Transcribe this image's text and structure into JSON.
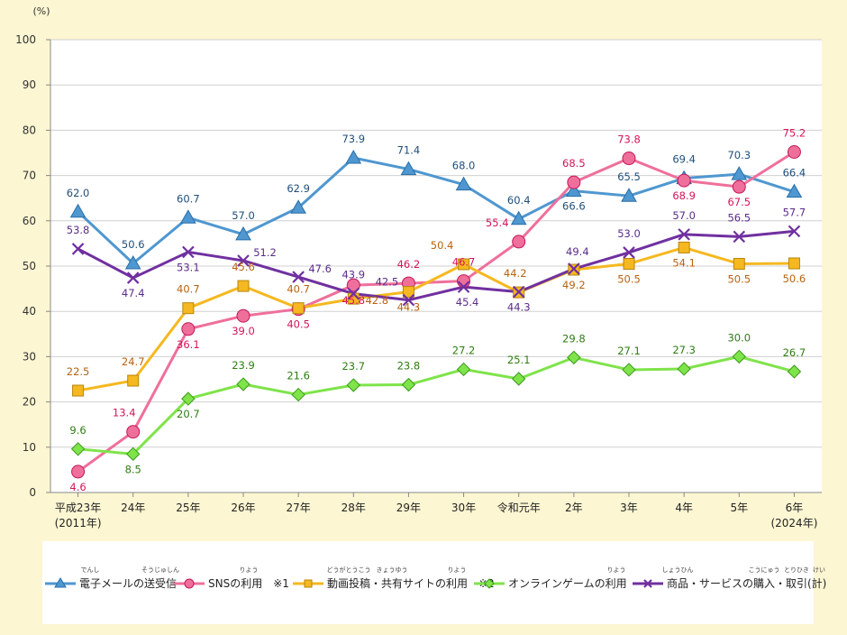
{
  "chart_data": {
    "type": "line",
    "ylabel": "(%)",
    "ylim": [
      0,
      100
    ],
    "yticks": [
      0,
      10,
      20,
      30,
      40,
      50,
      60,
      70,
      80,
      90,
      100
    ],
    "grid": true,
    "legend_position": "bottom",
    "categories": [
      {
        "label": "平成23年",
        "sub": "(2011年)"
      },
      {
        "label": "24年",
        "sub": ""
      },
      {
        "label": "25年",
        "sub": ""
      },
      {
        "label": "26年",
        "sub": ""
      },
      {
        "label": "27年",
        "sub": ""
      },
      {
        "label": "28年",
        "sub": ""
      },
      {
        "label": "29年",
        "sub": ""
      },
      {
        "label": "30年",
        "sub": ""
      },
      {
        "label": "令和元年",
        "sub": ""
      },
      {
        "label": "2年",
        "sub": ""
      },
      {
        "label": "3年",
        "sub": ""
      },
      {
        "label": "4年",
        "sub": ""
      },
      {
        "label": "5年",
        "sub": ""
      },
      {
        "label": "6年",
        "sub": "(2024年)"
      }
    ],
    "series": [
      {
        "name": "電子メールの送受信",
        "ruby": [
          {
            "text": "でんし",
            "over": "電子"
          },
          {
            "text": "そうじゅしん",
            "over": "送受信"
          }
        ],
        "color": "#4f97d0",
        "label_color": "#1f4e79",
        "marker": "triangle",
        "values": [
          62.0,
          50.6,
          60.7,
          57.0,
          62.9,
          73.9,
          71.4,
          68.0,
          60.4,
          66.6,
          65.5,
          69.4,
          70.3,
          66.4
        ],
        "labels": [
          "62.0",
          "50.6",
          "60.7",
          "57.0",
          "62.9",
          "73.9",
          "71.4",
          "68.0",
          "60.4",
          "66.6",
          "65.5",
          "69.4",
          "70.3",
          "66.4"
        ]
      },
      {
        "name": "SNSの利用　※1",
        "ruby": [
          {
            "text": "りよう",
            "over": "利用"
          }
        ],
        "color": "#ef6f9b",
        "label_color": "#d4145a",
        "marker": "circle",
        "values": [
          4.6,
          13.4,
          36.1,
          39.0,
          40.5,
          45.8,
          46.2,
          46.7,
          55.4,
          68.5,
          73.8,
          68.9,
          67.5,
          75.2
        ],
        "labels": [
          "4.6",
          "13.4",
          "36.1",
          "39.0",
          "40.5",
          "45.8",
          "46.2",
          "46.7",
          "55.4",
          "68.5",
          "73.8",
          "68.9",
          "67.5",
          "75.2"
        ]
      },
      {
        "name": "動画投稿・共有サイトの利用　※2",
        "ruby": [
          {
            "text": "どうがとうこう",
            "over": "動画投稿"
          },
          {
            "text": "きょうゆう",
            "over": "共有"
          },
          {
            "text": "りよう",
            "over": "利用"
          }
        ],
        "color": "#f5b820",
        "label_color": "#b8620f",
        "marker": "square",
        "values": [
          22.5,
          24.7,
          40.7,
          45.6,
          40.7,
          42.8,
          44.3,
          50.4,
          44.2,
          49.2,
          50.5,
          54.1,
          50.5,
          50.6
        ],
        "labels": [
          "22.5",
          "24.7",
          "40.7",
          "45.6",
          "40.7",
          "42.8",
          "44.3",
          "50.4",
          "44.2",
          "49.2",
          "50.5",
          "54.1",
          "50.5",
          "50.6"
        ]
      },
      {
        "name": "オンラインゲームの利用",
        "ruby": [
          {
            "text": "りよう",
            "over": "利用"
          }
        ],
        "color": "#7fe34a",
        "label_color": "#2e7d12",
        "marker": "diamond",
        "values": [
          9.6,
          8.5,
          20.7,
          23.9,
          21.6,
          23.7,
          23.8,
          27.2,
          25.1,
          29.8,
          27.1,
          27.3,
          30.0,
          26.7
        ],
        "labels": [
          "9.6",
          "8.5",
          "20.7",
          "23.9",
          "21.6",
          "23.7",
          "23.8",
          "27.2",
          "25.1",
          "29.8",
          "27.1",
          "27.3",
          "30.0",
          "26.7"
        ]
      },
      {
        "name": "商品・サービスの購入・取引(計)",
        "ruby": [
          {
            "text": "しょうひん",
            "over": "商品"
          },
          {
            "text": "こうにゅう",
            "over": "購入"
          },
          {
            "text": "とりひき",
            "over": "取引"
          },
          {
            "text": "けい",
            "over": "計"
          }
        ],
        "color": "#7030a0",
        "label_color": "#5b2c8a",
        "marker": "x",
        "values": [
          53.8,
          47.4,
          53.1,
          51.2,
          47.6,
          43.9,
          42.5,
          45.4,
          44.3,
          49.4,
          53.0,
          57.0,
          56.5,
          57.7
        ],
        "labels": [
          "53.8",
          "47.4",
          "53.1",
          "51.2",
          "47.6",
          "43.9",
          "42.5",
          "45.4",
          "44.3",
          "49.4",
          "53.0",
          "57.0",
          "56.5",
          "57.7"
        ]
      }
    ]
  }
}
